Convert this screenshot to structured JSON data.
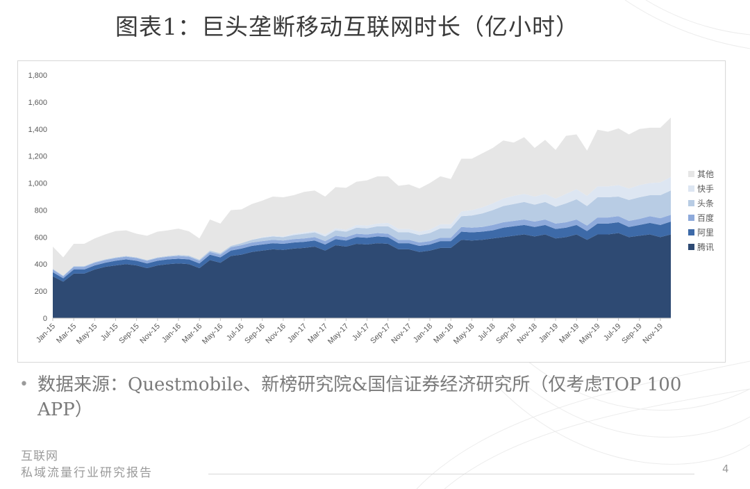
{
  "slide": {
    "title": "图表1：巨头垄断移动互联网时长（亿小时）",
    "source_text": "数据来源：Questmobile、新榜研究院&国信证券经济研究所（仅考虑TOP 100 APP）",
    "footer_line1": "互联网",
    "footer_line2": "私域流量行业研究报告",
    "page_number": "4"
  },
  "chart_data": {
    "type": "area",
    "stacked": true,
    "title": "",
    "xlabel": "",
    "ylabel": "",
    "ylim": [
      0,
      1800
    ],
    "yticks": [
      "0",
      "200",
      "400",
      "600",
      "800",
      "1,000",
      "1,200",
      "1,400",
      "1,600",
      "1,800"
    ],
    "grid": false,
    "legend_position": "right",
    "x": [
      "Jan-15",
      "Feb-15",
      "Mar-15",
      "Apr-15",
      "May-15",
      "Jun-15",
      "Jul-15",
      "Aug-15",
      "Sep-15",
      "Oct-15",
      "Nov-15",
      "Dec-15",
      "Jan-16",
      "Feb-16",
      "Mar-16",
      "Apr-16",
      "May-16",
      "Jun-16",
      "Jul-16",
      "Aug-16",
      "Sep-16",
      "Oct-16",
      "Nov-16",
      "Dec-16",
      "Jan-17",
      "Feb-17",
      "Mar-17",
      "Apr-17",
      "May-17",
      "Jun-17",
      "Jul-17",
      "Aug-17",
      "Sep-17",
      "Oct-17",
      "Nov-17",
      "Dec-17",
      "Jan-18",
      "Feb-18",
      "Mar-18",
      "Apr-18",
      "May-18",
      "Jun-18",
      "Jul-18",
      "Aug-18",
      "Sep-18",
      "Oct-18",
      "Nov-18",
      "Dec-18",
      "Jan-19",
      "Feb-19",
      "Mar-19",
      "Apr-19",
      "May-19",
      "Jun-19",
      "Jul-19",
      "Aug-19",
      "Sep-19",
      "Oct-19",
      "Nov-19",
      "Dec-19"
    ],
    "xtick_labels": [
      "Jan-15",
      "Mar-15",
      "May-15",
      "Jul-15",
      "Sep-15",
      "Nov-15",
      "Jan-16",
      "Mar-16",
      "May-16",
      "Jul-16",
      "Sep-16",
      "Nov-16",
      "Jan-17",
      "Mar-17",
      "May-17",
      "Jul-17",
      "Sep-17",
      "Nov-17",
      "Jan-18",
      "Mar-18",
      "May-18",
      "Jul-18",
      "Sep-18",
      "Nov-18",
      "Jan-19",
      "Mar-19",
      "May-19",
      "Jul-19",
      "Sep-19",
      "Nov-19"
    ],
    "series": [
      {
        "name": "腾讯",
        "color": "#2e4a73",
        "values": [
          310,
          270,
          330,
          330,
          360,
          380,
          390,
          400,
          390,
          370,
          390,
          400,
          405,
          400,
          370,
          430,
          410,
          460,
          470,
          490,
          500,
          510,
          505,
          515,
          520,
          530,
          500,
          540,
          530,
          550,
          545,
          555,
          550,
          510,
          510,
          490,
          500,
          520,
          520,
          580,
          575,
          580,
          590,
          600,
          610,
          620,
          605,
          620,
          590,
          600,
          620,
          580,
          620,
          620,
          630,
          600,
          610,
          620,
          600,
          620
        ]
      },
      {
        "name": "阿里",
        "color": "#3d6aa8",
        "values": [
          30,
          25,
          30,
          30,
          30,
          30,
          35,
          35,
          35,
          35,
          35,
          35,
          35,
          35,
          35,
          40,
          40,
          40,
          45,
          45,
          45,
          45,
          45,
          45,
          45,
          45,
          45,
          45,
          45,
          50,
          50,
          50,
          50,
          45,
          45,
          45,
          45,
          50,
          50,
          60,
          60,
          60,
          60,
          70,
          70,
          70,
          70,
          70,
          70,
          70,
          70,
          65,
          80,
          80,
          80,
          75,
          80,
          85,
          90,
          95
        ]
      },
      {
        "name": "百度",
        "color": "#8eaadb",
        "values": [
          20,
          15,
          20,
          20,
          20,
          20,
          20,
          20,
          20,
          20,
          20,
          20,
          20,
          20,
          20,
          20,
          20,
          25,
          25,
          25,
          25,
          25,
          25,
          25,
          25,
          25,
          25,
          25,
          25,
          25,
          25,
          25,
          25,
          25,
          25,
          25,
          25,
          25,
          25,
          35,
          35,
          35,
          40,
          40,
          40,
          40,
          40,
          40,
          40,
          40,
          40,
          40,
          45,
          45,
          45,
          45,
          45,
          50,
          50,
          50
        ]
      },
      {
        "name": "头条",
        "color": "#b8cce4",
        "values": [
          5,
          5,
          5,
          5,
          5,
          5,
          5,
          5,
          5,
          5,
          5,
          5,
          8,
          8,
          8,
          10,
          10,
          10,
          15,
          20,
          25,
          25,
          25,
          30,
          35,
          35,
          35,
          40,
          40,
          45,
          45,
          50,
          55,
          55,
          55,
          55,
          60,
          70,
          70,
          80,
          90,
          100,
          110,
          120,
          125,
          130,
          125,
          130,
          125,
          140,
          150,
          145,
          150,
          150,
          145,
          155,
          160,
          155,
          170,
          180
        ]
      },
      {
        "name": "快手",
        "color": "#dde6f2",
        "values": [
          0,
          0,
          0,
          0,
          0,
          0,
          0,
          0,
          0,
          0,
          0,
          0,
          0,
          0,
          0,
          0,
          0,
          0,
          0,
          0,
          5,
          5,
          5,
          10,
          10,
          10,
          15,
          15,
          15,
          20,
          20,
          20,
          25,
          25,
          25,
          25,
          25,
          30,
          30,
          35,
          40,
          45,
          50,
          55,
          60,
          60,
          60,
          60,
          60,
          70,
          75,
          75,
          80,
          80,
          85,
          85,
          90,
          90,
          95,
          100
        ]
      },
      {
        "name": "其他",
        "color": "#e6e6e6",
        "values": [
          165,
          135,
          165,
          165,
          175,
          185,
          195,
          190,
          175,
          180,
          190,
          190,
          195,
          180,
          157,
          230,
          220,
          265,
          250,
          265,
          270,
          290,
          290,
          285,
          300,
          300,
          280,
          305,
          310,
          320,
          335,
          350,
          345,
          320,
          330,
          320,
          345,
          355,
          335,
          390,
          380,
          400,
          410,
          430,
          395,
          420,
          360,
          400,
          360,
          430,
          405,
          335,
          420,
          405,
          420,
          400,
          415,
          410,
          405,
          440
        ]
      }
    ]
  }
}
